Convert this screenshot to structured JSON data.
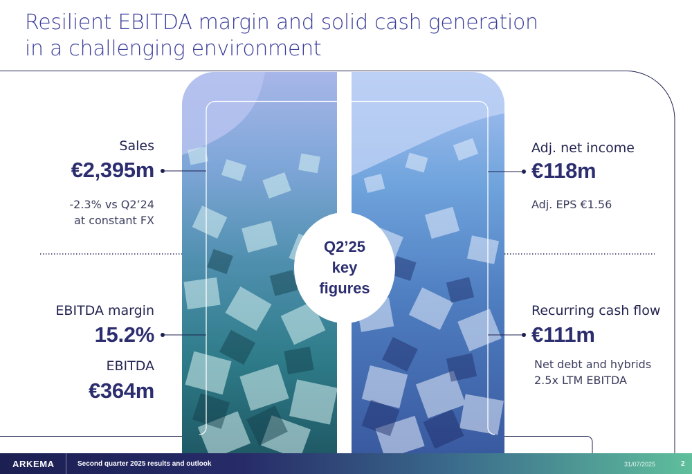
{
  "header": {
    "title_line1": "Resilient EBITDA margin and solid cash generation",
    "title_line2": "in a challenging environment"
  },
  "center": {
    "line1": "Q2’25",
    "line2": "key",
    "line3": "figures"
  },
  "left": {
    "sales": {
      "label": "Sales",
      "value": "€2,395m",
      "note_line1": "-2.3% vs Q2’24",
      "note_line2": "at constant FX"
    },
    "ebitda_margin": {
      "label": "EBITDA margin",
      "value": "15.2%"
    },
    "ebitda": {
      "label": "EBITDA",
      "value": "€364m"
    }
  },
  "right": {
    "net_income": {
      "label": "Adj. net income",
      "value": "€118m",
      "note": "Adj. EPS €1.56"
    },
    "cash_flow": {
      "label": "Recurring cash flow",
      "value": "€111m",
      "note_line1": "Net debt and hybrids",
      "note_line2": "2.5x LTM EBITDA"
    }
  },
  "footer": {
    "logo": "ARKEMA",
    "subtitle": "Second quarter 2025 results and outlook",
    "date": "31/07/2025",
    "page": "2"
  },
  "colors": {
    "title": "#3a3d9a",
    "navy": "#1d1f4f",
    "value": "#2b2d6e",
    "footer_start": "#1b1f52",
    "footer_end": "#5fbf9c"
  }
}
